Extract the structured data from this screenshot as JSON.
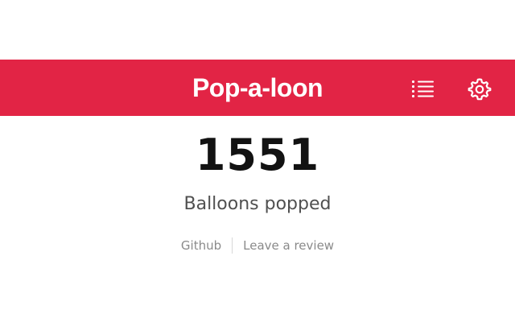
{
  "header": {
    "title": "Pop-a-loon",
    "list_icon": "list-icon",
    "settings_icon": "gear-icon",
    "background_color": "#e22445",
    "text_color": "#ffffff"
  },
  "stats": {
    "count": "1551",
    "label": "Balloons popped"
  },
  "footer_links": {
    "github": "Github",
    "review": "Leave a review"
  }
}
